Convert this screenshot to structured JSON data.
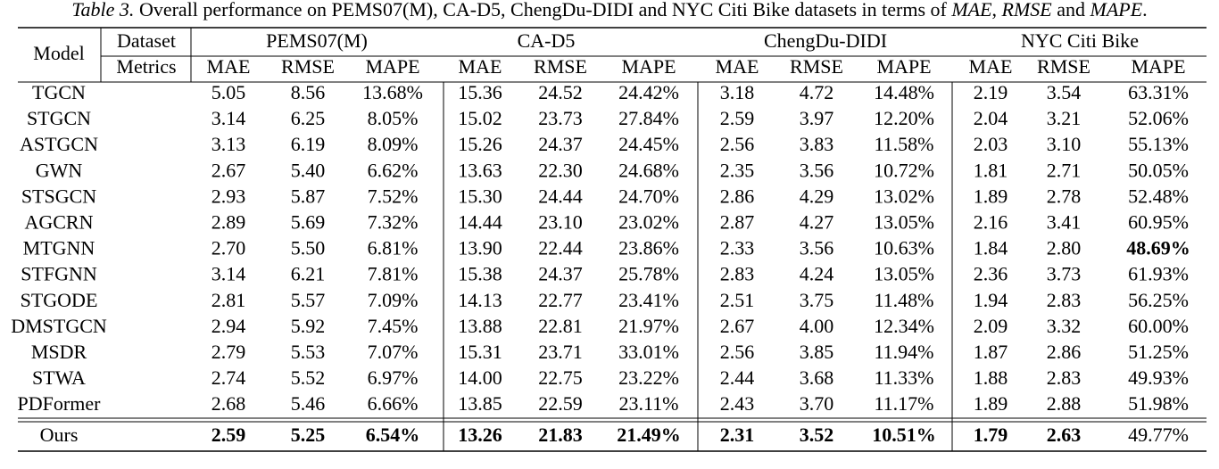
{
  "caption": [
    {
      "text": "Table 3.",
      "italic": true
    },
    {
      "text": " Overall performance on PEMS07(M), CA-D5, ChengDu-DIDI and NYC Citi Bike datasets in terms of ",
      "italic": false
    },
    {
      "text": "MAE",
      "italic": true
    },
    {
      "text": ", ",
      "italic": false
    },
    {
      "text": "RMSE",
      "italic": true
    },
    {
      "text": " and ",
      "italic": false
    },
    {
      "text": "MAPE",
      "italic": true
    },
    {
      "text": ".",
      "italic": false
    }
  ],
  "table": {
    "header": {
      "model": "Model",
      "dataset": "Dataset",
      "metrics": "Metrics",
      "datasets": [
        {
          "name": "PEMS07(M)",
          "metrics": [
            "MAE",
            "RMSE",
            "MAPE"
          ]
        },
        {
          "name": "CA-D5",
          "metrics": [
            "MAE",
            "RMSE",
            "MAPE"
          ]
        },
        {
          "name": "ChengDu-DIDI",
          "metrics": [
            "MAE",
            "RMSE",
            "MAPE"
          ]
        },
        {
          "name": "NYC Citi Bike",
          "metrics": [
            "MAE",
            "RMSE",
            "MAPE"
          ]
        }
      ]
    },
    "rows": [
      [
        "TGCN",
        "5.05",
        "8.56",
        "13.68%",
        "15.36",
        "24.52",
        "24.42%",
        "3.18",
        "4.72",
        "14.48%",
        "2.19",
        "3.54",
        "63.31%"
      ],
      [
        "STGCN",
        "3.14",
        "6.25",
        "8.05%",
        "15.02",
        "23.73",
        "27.84%",
        "2.59",
        "3.97",
        "12.20%",
        "2.04",
        "3.21",
        "52.06%"
      ],
      [
        "ASTGCN",
        "3.13",
        "6.19",
        "8.09%",
        "15.26",
        "24.37",
        "24.45%",
        "2.56",
        "3.83",
        "11.58%",
        "2.03",
        "3.10",
        "55.13%"
      ],
      [
        "GWN",
        "2.67",
        "5.40",
        "6.62%",
        "13.63",
        "22.30",
        "24.68%",
        "2.35",
        "3.56",
        "10.72%",
        "1.81",
        "2.71",
        "50.05%"
      ],
      [
        "STSGCN",
        "2.93",
        "5.87",
        "7.52%",
        "15.30",
        "24.44",
        "24.70%",
        "2.86",
        "4.29",
        "13.02%",
        "1.89",
        "2.78",
        "52.48%"
      ],
      [
        "AGCRN",
        "2.89",
        "5.69",
        "7.32%",
        "14.44",
        "23.10",
        "23.02%",
        "2.87",
        "4.27",
        "13.05%",
        "2.16",
        "3.41",
        "60.95%"
      ],
      [
        "MTGNN",
        "2.70",
        "5.50",
        "6.81%",
        "13.90",
        "22.44",
        "23.86%",
        "2.33",
        "3.56",
        "10.63%",
        "1.84",
        "2.80",
        {
          "text": "48.69%",
          "bold": true
        }
      ],
      [
        "STFGNN",
        "3.14",
        "6.21",
        "7.81%",
        "15.38",
        "24.37",
        "25.78%",
        "2.83",
        "4.24",
        "13.05%",
        "2.36",
        "3.73",
        "61.93%"
      ],
      [
        "STGODE",
        "2.81",
        "5.57",
        "7.09%",
        "14.13",
        "22.77",
        "23.41%",
        "2.51",
        "3.75",
        "11.48%",
        "1.94",
        "2.83",
        "56.25%"
      ],
      [
        "DMSTGCN",
        "2.94",
        "5.92",
        "7.45%",
        "13.88",
        "22.81",
        "21.97%",
        "2.67",
        "4.00",
        "12.34%",
        "2.09",
        "3.32",
        "60.00%"
      ],
      [
        "MSDR",
        "2.79",
        "5.53",
        "7.07%",
        "15.31",
        "23.71",
        "33.01%",
        "2.56",
        "3.85",
        "11.94%",
        "1.87",
        "2.86",
        "51.25%"
      ],
      [
        "STWA",
        "2.74",
        "5.52",
        "6.97%",
        "14.00",
        "22.75",
        "23.22%",
        "2.44",
        "3.68",
        "11.33%",
        "1.88",
        "2.83",
        "49.93%"
      ],
      [
        "PDFormer",
        "2.68",
        "5.46",
        "6.66%",
        "13.85",
        "22.59",
        "23.11%",
        "2.43",
        "3.70",
        "11.17%",
        "1.89",
        "2.88",
        "51.98%"
      ]
    ],
    "ours": [
      "Ours",
      {
        "text": "2.59",
        "bold": true
      },
      {
        "text": "5.25",
        "bold": true
      },
      {
        "text": "6.54%",
        "bold": true
      },
      {
        "text": "13.26",
        "bold": true
      },
      {
        "text": "21.83",
        "bold": true
      },
      {
        "text": "21.49%",
        "bold": true
      },
      {
        "text": "2.31",
        "bold": true
      },
      {
        "text": "3.52",
        "bold": true
      },
      {
        "text": "10.51%",
        "bold": true
      },
      {
        "text": "1.79",
        "bold": true
      },
      {
        "text": "2.63",
        "bold": true
      },
      "49.77%"
    ]
  }
}
